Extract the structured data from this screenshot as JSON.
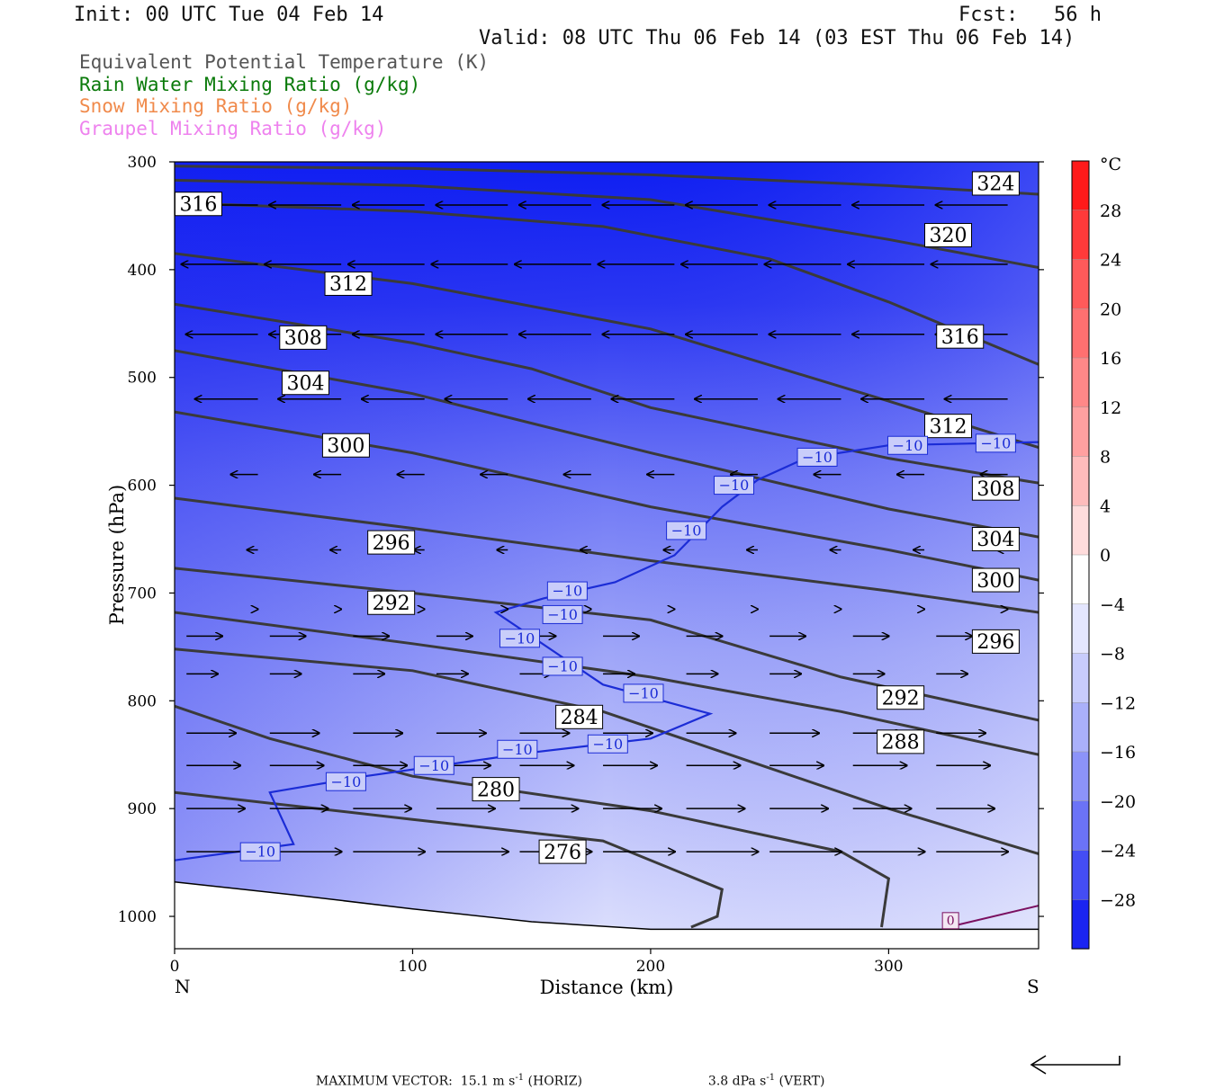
{
  "header": {
    "init": "Init: 00 UTC Tue 04 Feb 14",
    "fcst": "Fcst:   56 h",
    "valid": "Valid: 08 UTC Thu 06 Feb 14 (03 EST Thu 06 Feb 14)"
  },
  "legend": [
    {
      "text": "Equivalent Potential Temperature (K)",
      "color": "#555555"
    },
    {
      "text": "Rain Water Mixing Ratio (g/kg)",
      "color": "#0a7a0a"
    },
    {
      "text": "Snow Mixing Ratio (g/kg)",
      "color": "#f08a4b"
    },
    {
      "text": "Graupel Mixing Ratio (g/kg)",
      "color": "#ee82ee"
    }
  ],
  "chart_data": {
    "type": "cross-section contour",
    "xlabel": "Distance (km)",
    "ylabel": "Pressure (hPa)",
    "xlim": [
      0,
      363
    ],
    "ylim": [
      1030,
      300
    ],
    "xticks": [
      "0",
      "100",
      "200",
      "300"
    ],
    "xtick_values": [
      0,
      100,
      200,
      300
    ],
    "yticks": [
      "300",
      "400",
      "500",
      "600",
      "700",
      "800",
      "900",
      "1000"
    ],
    "ytick_values": [
      300,
      400,
      500,
      600,
      700,
      800,
      900,
      1000
    ],
    "end_labels": {
      "left": "N",
      "right": "S"
    },
    "colorbar": {
      "unit": "°C",
      "labels": [
        "28",
        "24",
        "20",
        "16",
        "12",
        "8",
        "4",
        "0",
        "-4",
        "-8",
        "-12",
        "-16",
        "-20",
        "-24",
        "-28"
      ],
      "label_values": [
        28,
        24,
        20,
        16,
        12,
        8,
        4,
        0,
        -4,
        -8,
        -12,
        -16,
        -20,
        -24,
        -28
      ],
      "range": [
        -32,
        32
      ]
    },
    "theta_e_contours": [
      {
        "label": "324",
        "points": [
          [
            0,
            304
          ],
          [
            100,
            306
          ],
          [
            200,
            312
          ],
          [
            300,
            322
          ],
          [
            363,
            330
          ]
        ]
      },
      {
        "label": "320",
        "points": [
          [
            0,
            317
          ],
          [
            100,
            322
          ],
          [
            200,
            335
          ],
          [
            300,
            372
          ],
          [
            363,
            398
          ]
        ]
      },
      {
        "label": "316",
        "points": [
          [
            0,
            338
          ],
          [
            100,
            346
          ],
          [
            180,
            360
          ],
          [
            250,
            390
          ],
          [
            300,
            430
          ],
          [
            363,
            488
          ]
        ]
      },
      {
        "label": "312",
        "points": [
          [
            0,
            385
          ],
          [
            100,
            413
          ],
          [
            200,
            455
          ],
          [
            300,
            522
          ],
          [
            363,
            565
          ]
        ]
      },
      {
        "label": "308",
        "points": [
          [
            0,
            432
          ],
          [
            100,
            468
          ],
          [
            150,
            492
          ],
          [
            200,
            528
          ],
          [
            300,
            575
          ],
          [
            363,
            598
          ]
        ]
      },
      {
        "label": "304",
        "points": [
          [
            0,
            475
          ],
          [
            100,
            515
          ],
          [
            200,
            570
          ],
          [
            300,
            622
          ],
          [
            363,
            648
          ]
        ]
      },
      {
        "label": "300",
        "points": [
          [
            0,
            532
          ],
          [
            100,
            570
          ],
          [
            200,
            620
          ],
          [
            300,
            660
          ],
          [
            363,
            688
          ]
        ]
      },
      {
        "label": "296",
        "points": [
          [
            0,
            612
          ],
          [
            100,
            640
          ],
          [
            200,
            670
          ],
          [
            300,
            698
          ],
          [
            363,
            718
          ]
        ]
      },
      {
        "label": "292",
        "points": [
          [
            0,
            677
          ],
          [
            100,
            700
          ],
          [
            200,
            725
          ],
          [
            280,
            778
          ],
          [
            363,
            818
          ]
        ]
      },
      {
        "label": "288",
        "points": [
          [
            0,
            718
          ],
          [
            100,
            747
          ],
          [
            200,
            778
          ],
          [
            280,
            810
          ],
          [
            363,
            850
          ]
        ]
      },
      {
        "label": "284",
        "points": [
          [
            0,
            752
          ],
          [
            100,
            772
          ],
          [
            180,
            810
          ],
          [
            240,
            855
          ],
          [
            300,
            900
          ],
          [
            363,
            942
          ]
        ]
      },
      {
        "label": "280",
        "points": [
          [
            0,
            805
          ],
          [
            40,
            835
          ],
          [
            100,
            870
          ],
          [
            200,
            902
          ],
          [
            280,
            940
          ],
          [
            300,
            965
          ],
          [
            297,
            1010
          ]
        ]
      },
      {
        "label": "276",
        "points": [
          [
            0,
            885
          ],
          [
            100,
            910
          ],
          [
            180,
            930
          ],
          [
            230,
            975
          ],
          [
            228,
            1000
          ],
          [
            217,
            1010
          ]
        ]
      }
    ],
    "temp_minus10_isotherm": {
      "label": "-10",
      "points": [
        [
          0,
          948
        ],
        [
          50,
          933
        ],
        [
          40,
          885
        ],
        [
          80,
          870
        ],
        [
          150,
          848
        ],
        [
          200,
          835
        ],
        [
          225,
          812
        ],
        [
          180,
          785
        ],
        [
          135,
          718
        ],
        [
          155,
          705
        ],
        [
          185,
          690
        ],
        [
          210,
          665
        ],
        [
          230,
          620
        ],
        [
          245,
          595
        ],
        [
          265,
          575
        ],
        [
          300,
          563
        ],
        [
          363,
          560
        ]
      ]
    },
    "temp_zero_isotherm": {
      "label": "0",
      "points": [
        [
          325,
          1010
        ],
        [
          363,
          990
        ]
      ]
    },
    "ground_pressure": [
      [
        0,
        968
      ],
      [
        50,
        980
      ],
      [
        100,
        993
      ],
      [
        150,
        1005
      ],
      [
        200,
        1012
      ],
      [
        363,
        1012
      ]
    ],
    "wind_vectors_note": "horizontal-vertical circulation vectors"
  },
  "footer": {
    "max_vector": "MAXIMUM VECTOR:  15.1 m s",
    "exp": "-1",
    "horiz": " (HORIZ)",
    "vert_val": "3.8 dPa s",
    "vert": " (VERT)"
  }
}
